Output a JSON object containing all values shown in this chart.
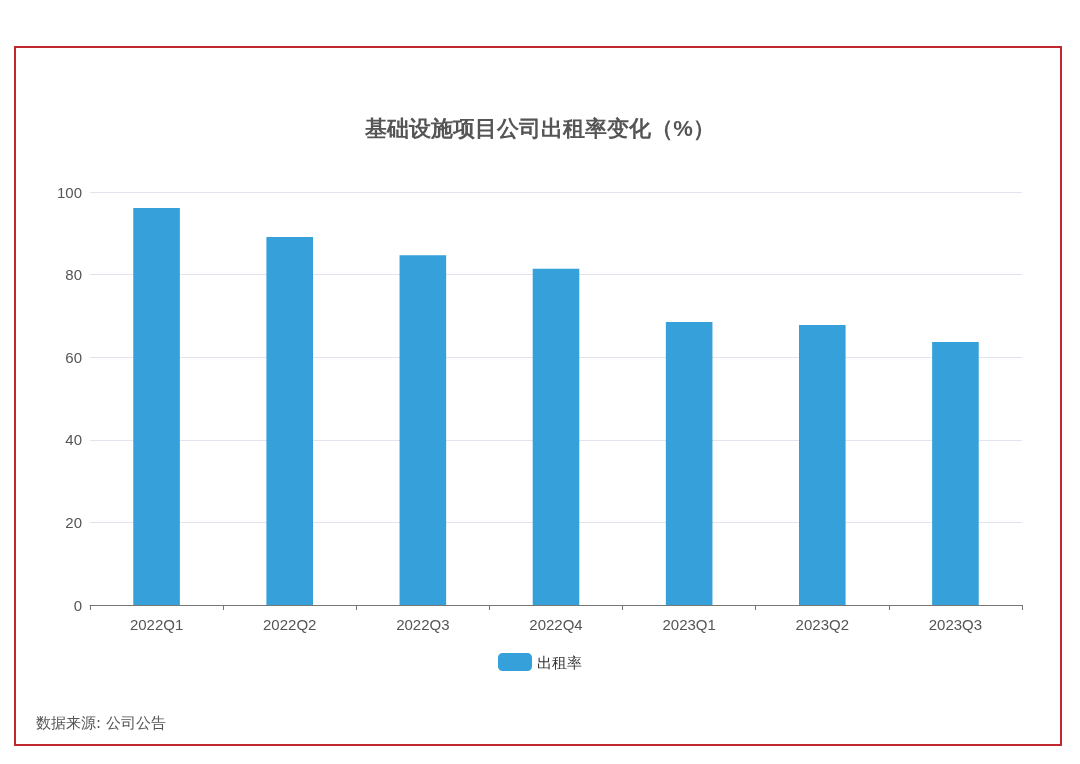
{
  "chart_data": {
    "type": "bar",
    "title": "基础设施项目公司出租率变化（%）",
    "categories": [
      "2022Q1",
      "2022Q2",
      "2022Q3",
      "2022Q4",
      "2023Q1",
      "2023Q2",
      "2023Q3"
    ],
    "series": [
      {
        "name": "出租率",
        "color": "#35a0d9",
        "values": [
          96.1,
          89.1,
          84.7,
          81.4,
          68.5,
          67.8,
          63.7
        ]
      }
    ],
    "ylim": [
      0,
      100
    ],
    "yticks": [
      0,
      20,
      40,
      60,
      80,
      100
    ],
    "grid": "y",
    "legend": "bottom",
    "annotations": [
      "数据来源: 公司公告"
    ]
  }
}
